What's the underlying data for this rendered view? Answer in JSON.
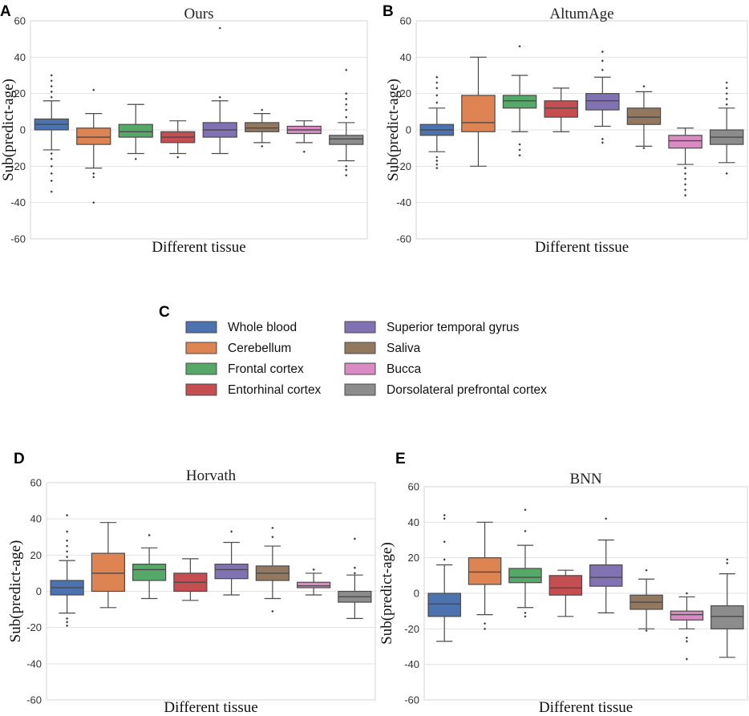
{
  "panel_letters": {
    "A": "A",
    "B": "B",
    "C": "C",
    "D": "D",
    "E": "E"
  },
  "legend": [
    {
      "label": "Whole blood",
      "color": "#4c72b0"
    },
    {
      "label": "Cerebellum",
      "color": "#dd8452"
    },
    {
      "label": "Frontal cortex",
      "color": "#55a868"
    },
    {
      "label": "Entorhinal cortex",
      "color": "#c44e52"
    },
    {
      "label": "Superior temporal gyrus",
      "color": "#8172b3"
    },
    {
      "label": "Saliva",
      "color": "#937860"
    },
    {
      "label": "Bucca",
      "color": "#da8bc3"
    },
    {
      "label": "Dorsolateral prefrontal cortex",
      "color": "#8c8c8c"
    }
  ],
  "chart_data": [
    {
      "panel": "A",
      "type": "boxplot",
      "title": "Ours",
      "xlabel": "Different tissue",
      "ylabel": "Sub(predict-age)",
      "ylim": [
        -60,
        60
      ],
      "yticks": [
        "60",
        "40",
        "20",
        "0",
        "-20",
        "-40",
        "-60"
      ],
      "categories": [
        "Whole blood",
        "Cerebellum",
        "Frontal cortex",
        "Entorhinal cortex",
        "Superior temporal gyrus",
        "Saliva",
        "Bucca",
        "Dorsolateral prefrontal cortex"
      ],
      "boxes": [
        {
          "whislo": -11,
          "q1": 0,
          "med": 3,
          "q3": 6,
          "whishi": 16,
          "fliers": [
            -34,
            -28,
            -24,
            -20,
            -16,
            -13,
            18,
            21,
            24,
            27,
            30
          ]
        },
        {
          "whislo": -21,
          "q1": -8,
          "med": -4,
          "q3": 1,
          "whishi": 9,
          "fliers": [
            -40,
            -26,
            -24,
            22
          ]
        },
        {
          "whislo": -13,
          "q1": -4,
          "med": -1,
          "q3": 3,
          "whishi": 14,
          "fliers": [
            -16
          ]
        },
        {
          "whislo": -13,
          "q1": -7,
          "med": -4,
          "q3": -1,
          "whishi": 5,
          "fliers": [
            -15
          ]
        },
        {
          "whislo": -13,
          "q1": -4,
          "med": 0,
          "q3": 4,
          "whishi": 16,
          "fliers": [
            18,
            56
          ]
        },
        {
          "whislo": -7,
          "q1": -1,
          "med": 1,
          "q3": 4,
          "whishi": 9,
          "fliers": [
            -9,
            11
          ]
        },
        {
          "whislo": -7,
          "q1": -2,
          "med": 0,
          "q3": 2,
          "whishi": 5,
          "fliers": [
            -12
          ]
        },
        {
          "whislo": -17,
          "q1": -8,
          "med": -5,
          "q3": -3,
          "whishi": 4,
          "fliers": [
            -25,
            -22,
            -20,
            7,
            11,
            14,
            17,
            20,
            33
          ]
        }
      ]
    },
    {
      "panel": "B",
      "type": "boxplot",
      "title": "AltumAge",
      "xlabel": "Different tissue",
      "ylabel": "Sub(predict-age)",
      "ylim": [
        -60,
        60
      ],
      "yticks": [
        "60",
        "40",
        "20",
        "0",
        "-20",
        "-40",
        "-60"
      ],
      "categories": [
        "Whole blood",
        "Cerebellum",
        "Frontal cortex",
        "Entorhinal cortex",
        "Superior temporal gyrus",
        "Saliva",
        "Bucca",
        "Dorsolateral prefrontal cortex"
      ],
      "boxes": [
        {
          "whislo": -12,
          "q1": -3,
          "med": 0,
          "q3": 3,
          "whishi": 12,
          "fliers": [
            -21,
            -19,
            -17,
            -15,
            15,
            19,
            23,
            26,
            29
          ]
        },
        {
          "whislo": -20,
          "q1": -1,
          "med": 4,
          "q3": 19,
          "whishi": 40,
          "fliers": []
        },
        {
          "whislo": -1,
          "q1": 12,
          "med": 16,
          "q3": 19,
          "whishi": 30,
          "fliers": [
            -14,
            -11,
            -8,
            46
          ]
        },
        {
          "whislo": -1,
          "q1": 7,
          "med": 12,
          "q3": 16,
          "whishi": 23,
          "fliers": []
        },
        {
          "whislo": 2,
          "q1": 11,
          "med": 16,
          "q3": 20,
          "whishi": 29,
          "fliers": [
            -7,
            -5,
            33,
            38,
            43
          ]
        },
        {
          "whislo": -9,
          "q1": 3,
          "med": 7,
          "q3": 12,
          "whishi": 21,
          "fliers": [
            -10,
            24
          ]
        },
        {
          "whislo": -19,
          "q1": -10,
          "med": -6,
          "q3": -3,
          "whishi": 1,
          "fliers": [
            -36,
            -33,
            -30,
            -27,
            -24,
            -21
          ]
        },
        {
          "whislo": -18,
          "q1": -8,
          "med": -4,
          "q3": 0,
          "whishi": 12,
          "fliers": [
            -24,
            14,
            17,
            20,
            23,
            26
          ]
        }
      ]
    },
    {
      "panel": "D",
      "type": "boxplot",
      "title": "Horvath",
      "xlabel": "Different tissue",
      "ylabel": "Sub(predict-age)",
      "ylim": [
        -60,
        60
      ],
      "yticks": [
        "60",
        "40",
        "20",
        "0",
        "-20",
        "-40",
        "-60"
      ],
      "categories": [
        "Whole blood",
        "Cerebellum",
        "Frontal cortex",
        "Entorhinal cortex",
        "Superior temporal gyrus",
        "Saliva",
        "Bucca",
        "Dorsolateral prefrontal cortex"
      ],
      "boxes": [
        {
          "whislo": -12,
          "q1": -2,
          "med": 2,
          "q3": 6,
          "whishi": 17,
          "fliers": [
            -19,
            -17,
            -15,
            19,
            22,
            25,
            28,
            33,
            42
          ]
        },
        {
          "whislo": -9,
          "q1": 0,
          "med": 10,
          "q3": 21,
          "whishi": 38,
          "fliers": []
        },
        {
          "whislo": -4,
          "q1": 6,
          "med": 12,
          "q3": 15,
          "whishi": 24,
          "fliers": [
            31
          ]
        },
        {
          "whislo": -5,
          "q1": 0,
          "med": 5,
          "q3": 10,
          "whishi": 18,
          "fliers": []
        },
        {
          "whislo": -2,
          "q1": 7,
          "med": 12,
          "q3": 15,
          "whishi": 27,
          "fliers": [
            33
          ]
        },
        {
          "whislo": -4,
          "q1": 6,
          "med": 10,
          "q3": 14,
          "whishi": 25,
          "fliers": [
            -11,
            30,
            35
          ]
        },
        {
          "whislo": -2,
          "q1": 2,
          "med": 3,
          "q3": 5,
          "whishi": 10,
          "fliers": [
            12
          ]
        },
        {
          "whislo": -15,
          "q1": -6,
          "med": -3,
          "q3": 0,
          "whishi": 9,
          "fliers": [
            10,
            13,
            29
          ]
        }
      ]
    },
    {
      "panel": "E",
      "type": "boxplot",
      "title": "BNN",
      "xlabel": "Different tissue",
      "ylabel": "Sub(predict-age)",
      "ylim": [
        -60,
        60
      ],
      "yticks": [
        "60",
        "40",
        "20",
        "0",
        "-20",
        "-40",
        "-60"
      ],
      "categories": [
        "Whole blood",
        "Cerebellum",
        "Frontal cortex",
        "Entorhinal cortex",
        "Superior temporal gyrus",
        "Saliva",
        "Bucca",
        "Dorsolateral prefrontal cortex"
      ],
      "boxes": [
        {
          "whislo": -27,
          "q1": -13,
          "med": -6,
          "q3": 0,
          "whishi": 16,
          "fliers": [
            19,
            29,
            42,
            44
          ]
        },
        {
          "whislo": -12,
          "q1": 5,
          "med": 12,
          "q3": 20,
          "whishi": 40,
          "fliers": [
            -20,
            -17
          ]
        },
        {
          "whislo": -8,
          "q1": 6,
          "med": 9,
          "q3": 14,
          "whishi": 27,
          "fliers": [
            -13,
            -11,
            35,
            47
          ]
        },
        {
          "whislo": -13,
          "q1": -1,
          "med": 3,
          "q3": 10,
          "whishi": 13,
          "fliers": []
        },
        {
          "whislo": -11,
          "q1": 4,
          "med": 9,
          "q3": 16,
          "whishi": 30,
          "fliers": [
            42
          ]
        },
        {
          "whislo": -20,
          "q1": -9,
          "med": -5,
          "q3": -1,
          "whishi": 8,
          "fliers": [
            -21,
            13
          ]
        },
        {
          "whislo": -20,
          "q1": -15,
          "med": -12,
          "q3": -10,
          "whishi": -2,
          "fliers": [
            -37,
            -27,
            -25,
            0
          ]
        },
        {
          "whislo": -36,
          "q1": -20,
          "med": -13,
          "q3": -7,
          "whishi": 11,
          "fliers": [
            17,
            19
          ]
        }
      ]
    }
  ]
}
